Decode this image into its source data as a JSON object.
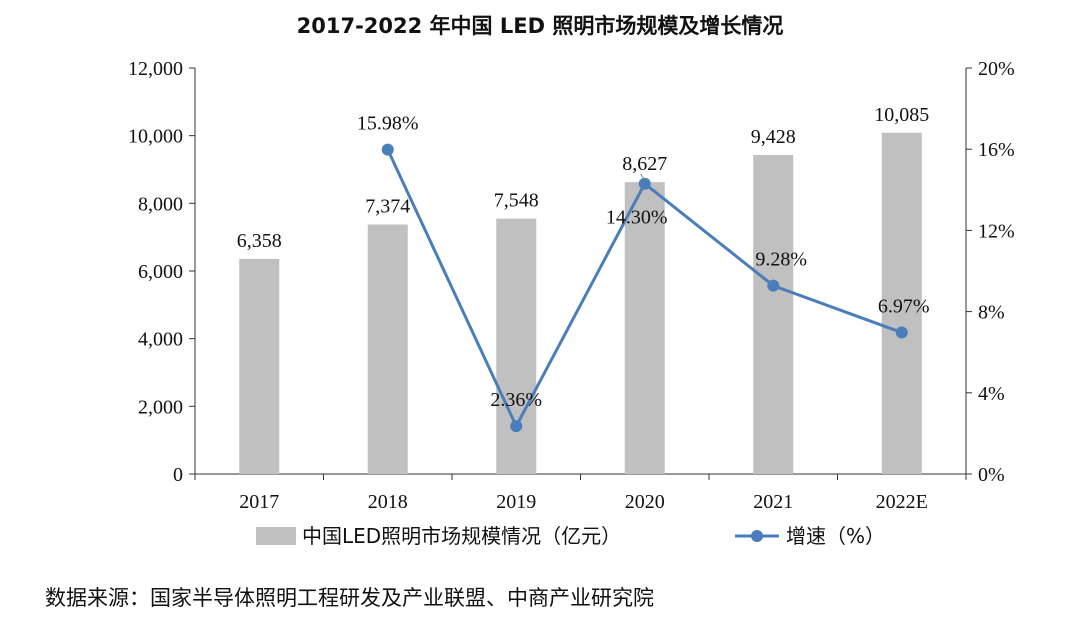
{
  "chart_data": {
    "type": "bar+line",
    "title": "2017-2022 年中国 LED 照明市场规模及增长情况",
    "categories": [
      "2017",
      "2018",
      "2019",
      "2020",
      "2021",
      "2022E"
    ],
    "bar_series": {
      "name": "中国LED照明市场规模情况（亿元）",
      "values": [
        6358,
        7374,
        7548,
        8627,
        9428,
        10085
      ],
      "labels": [
        "6,358",
        "7,374",
        "7,548",
        "8,627",
        "9,428",
        "10,085"
      ],
      "color": "#c0c0c0"
    },
    "line_series": {
      "name": "增速（%）",
      "points": [
        {
          "category": "2018",
          "value": 15.98,
          "label": "15.98%"
        },
        {
          "category": "2019",
          "value": 2.36,
          "label": "2.36%"
        },
        {
          "category": "2020",
          "value": 14.3,
          "label": "14.30%"
        },
        {
          "category": "2021",
          "value": 9.28,
          "label": "9.28%"
        },
        {
          "category": "2022E",
          "value": 6.97,
          "label": "6.97%"
        }
      ],
      "color": "#4a7ebb"
    },
    "y_left": {
      "min": 0,
      "max": 12000,
      "ticks": [
        0,
        2000,
        4000,
        6000,
        8000,
        10000,
        12000
      ],
      "tick_labels": [
        "0",
        "2,000",
        "4,000",
        "6,000",
        "8,000",
        "10,000",
        "12,000"
      ]
    },
    "y_right": {
      "min": 0,
      "max": 20,
      "ticks": [
        0,
        4,
        8,
        12,
        16,
        20
      ],
      "tick_labels": [
        "0%",
        "4%",
        "8%",
        "12%",
        "16%",
        "20%"
      ]
    },
    "legend_position": "bottom"
  },
  "source": "数据来源：国家半导体照明工程研发及产业联盟、中商产业研究院"
}
